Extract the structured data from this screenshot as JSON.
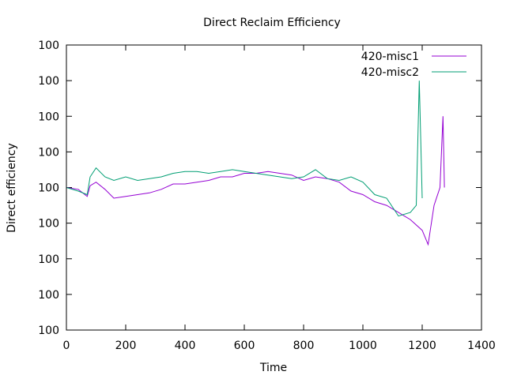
{
  "chart_data": {
    "type": "line",
    "title": "Direct Reclaim Efficiency",
    "xlabel": "Time",
    "ylabel": "Direct efficiency",
    "xlim": [
      0,
      1400
    ],
    "ylim": [
      99.92,
      100.08
    ],
    "x_ticks": [
      0,
      200,
      400,
      600,
      800,
      1000,
      1200,
      1400
    ],
    "y_ticks": [
      99.92,
      99.94,
      99.96,
      99.98,
      100.0,
      100.02,
      100.04,
      100.06,
      100.08
    ],
    "y_tick_labels": [
      "100",
      "100",
      "100",
      "100",
      "100",
      "100",
      "100",
      "100",
      "100"
    ],
    "grid": false,
    "legend_position": "top-right",
    "series": [
      {
        "name": "420-misc1",
        "color": "#9400d3",
        "points": [
          [
            0,
            100.0
          ],
          [
            40,
            99.999
          ],
          [
            70,
            99.995
          ],
          [
            80,
            100.001
          ],
          [
            100,
            100.003
          ],
          [
            130,
            99.999
          ],
          [
            160,
            99.994
          ],
          [
            200,
            99.995
          ],
          [
            240,
            99.996
          ],
          [
            280,
            99.997
          ],
          [
            320,
            99.999
          ],
          [
            360,
            100.002
          ],
          [
            400,
            100.002
          ],
          [
            440,
            100.003
          ],
          [
            480,
            100.004
          ],
          [
            520,
            100.006
          ],
          [
            560,
            100.006
          ],
          [
            600,
            100.008
          ],
          [
            640,
            100.008
          ],
          [
            680,
            100.009
          ],
          [
            720,
            100.008
          ],
          [
            760,
            100.007
          ],
          [
            800,
            100.004
          ],
          [
            840,
            100.006
          ],
          [
            880,
            100.005
          ],
          [
            920,
            100.003
          ],
          [
            960,
            99.998
          ],
          [
            1000,
            99.996
          ],
          [
            1040,
            99.992
          ],
          [
            1080,
            99.99
          ],
          [
            1120,
            99.986
          ],
          [
            1160,
            99.982
          ],
          [
            1200,
            99.976
          ],
          [
            1220,
            99.968
          ],
          [
            1240,
            99.99
          ],
          [
            1260,
            100.0
          ],
          [
            1270,
            100.04
          ],
          [
            1275,
            100.0
          ]
        ]
      },
      {
        "name": "420-misc2",
        "color": "#009e73",
        "points": [
          [
            0,
            100.0
          ],
          [
            40,
            99.998
          ],
          [
            70,
            99.996
          ],
          [
            80,
            100.006
          ],
          [
            100,
            100.011
          ],
          [
            130,
            100.006
          ],
          [
            160,
            100.004
          ],
          [
            200,
            100.006
          ],
          [
            240,
            100.004
          ],
          [
            280,
            100.005
          ],
          [
            320,
            100.006
          ],
          [
            360,
            100.008
          ],
          [
            400,
            100.009
          ],
          [
            440,
            100.009
          ],
          [
            480,
            100.008
          ],
          [
            520,
            100.009
          ],
          [
            560,
            100.01
          ],
          [
            600,
            100.009
          ],
          [
            640,
            100.008
          ],
          [
            680,
            100.007
          ],
          [
            720,
            100.006
          ],
          [
            760,
            100.005
          ],
          [
            800,
            100.006
          ],
          [
            840,
            100.01
          ],
          [
            880,
            100.005
          ],
          [
            920,
            100.004
          ],
          [
            960,
            100.006
          ],
          [
            1000,
            100.003
          ],
          [
            1040,
            99.996
          ],
          [
            1080,
            99.994
          ],
          [
            1120,
            99.984
          ],
          [
            1160,
            99.986
          ],
          [
            1180,
            99.99
          ],
          [
            1190,
            100.06
          ],
          [
            1200,
            99.994
          ]
        ]
      }
    ]
  }
}
